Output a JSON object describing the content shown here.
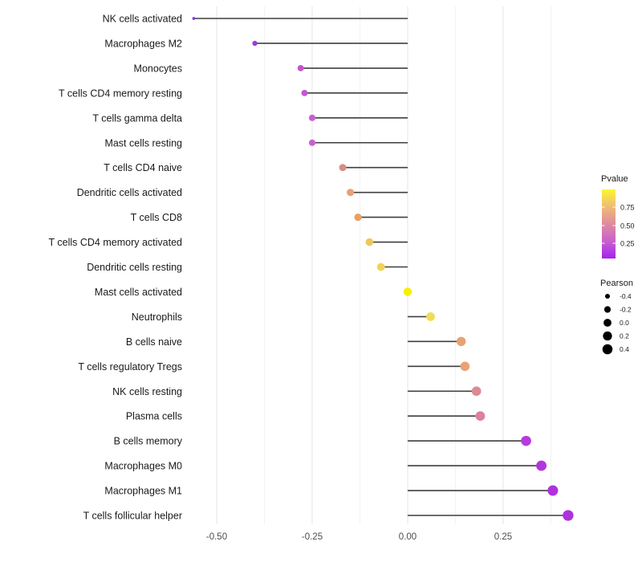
{
  "chart_data": {
    "type": "lollipop",
    "title": "",
    "xlabel": "",
    "ylabel": "",
    "x_tick_labels": [
      "-0.50",
      "-0.25",
      "0.00",
      "0.25"
    ],
    "x_tick_values": [
      -0.5,
      -0.25,
      0.0,
      0.25
    ],
    "x_minor_values": [
      -0.375,
      -0.125,
      0.125,
      0.375
    ],
    "xlim": [
      -0.57,
      0.44
    ],
    "grid": true,
    "legend_position": "right",
    "points": [
      {
        "label": "NK cells activated",
        "pearson": -0.56,
        "color": "#9130E6"
      },
      {
        "label": "Macrophages M2",
        "pearson": -0.4,
        "color": "#A13BDB"
      },
      {
        "label": "Monocytes",
        "pearson": -0.28,
        "color": "#C355CC"
      },
      {
        "label": "T cells CD4 memory resting",
        "pearson": -0.27,
        "color": "#C558CE"
      },
      {
        "label": "T cells gamma delta",
        "pearson": -0.25,
        "color": "#C95FD0"
      },
      {
        "label": "Mast cells resting",
        "pearson": -0.25,
        "color": "#CA5FD1"
      },
      {
        "label": "T cells CD4 naive",
        "pearson": -0.17,
        "color": "#D98B84"
      },
      {
        "label": "Dendritic cells activated",
        "pearson": -0.15,
        "color": "#E8A175"
      },
      {
        "label": "T cells CD8",
        "pearson": -0.13,
        "color": "#E8A065"
      },
      {
        "label": "T cells CD4 memory activated",
        "pearson": -0.1,
        "color": "#EFC75B"
      },
      {
        "label": "Dendritic cells resting",
        "pearson": -0.07,
        "color": "#F0D355"
      },
      {
        "label": "Mast cells activated",
        "pearson": 0.0,
        "color": "#F7F000"
      },
      {
        "label": "Neutrophils",
        "pearson": 0.06,
        "color": "#F2DC55"
      },
      {
        "label": "B cells naive",
        "pearson": 0.14,
        "color": "#E8A273"
      },
      {
        "label": "T cells regulatory  Tregs",
        "pearson": 0.15,
        "color": "#E8A273"
      },
      {
        "label": "NK cells resting",
        "pearson": 0.18,
        "color": "#DC8B92"
      },
      {
        "label": "Plasma cells",
        "pearson": 0.19,
        "color": "#DC8299"
      },
      {
        "label": "B cells memory",
        "pearson": 0.31,
        "color": "#B83ADC"
      },
      {
        "label": "Macrophages M0",
        "pearson": 0.35,
        "color": "#B335DE"
      },
      {
        "label": "Macrophages M1",
        "pearson": 0.38,
        "color": "#B032DF"
      },
      {
        "label": "T cells follicular helper",
        "pearson": 0.42,
        "color": "#AE30E0"
      }
    ],
    "legend_pvalue": {
      "title": "Pvalue",
      "tick_labels": [
        "0.75",
        "0.50",
        "0.25"
      ],
      "gradient_stops": [
        "#FBF631",
        "#EFBB76",
        "#E08BA0",
        "#C95FCE",
        "#A224EE"
      ]
    },
    "legend_pearson": {
      "title": "Pearson",
      "tick_labels": [
        "-0.4",
        "-0.2",
        "0.0",
        "0.2",
        "0.4"
      ],
      "tick_values": [
        -0.4,
        -0.2,
        0.0,
        0.2,
        0.4
      ],
      "dot_color": "#000000"
    },
    "colors": {
      "stick": "#3F3F3F",
      "grid_major": "#E8E8E8",
      "grid_minor": "#F2F2F2",
      "axis_text": "#4D4D4D",
      "label_text": "#1A1A1A",
      "background": "#FFFFFF"
    }
  }
}
